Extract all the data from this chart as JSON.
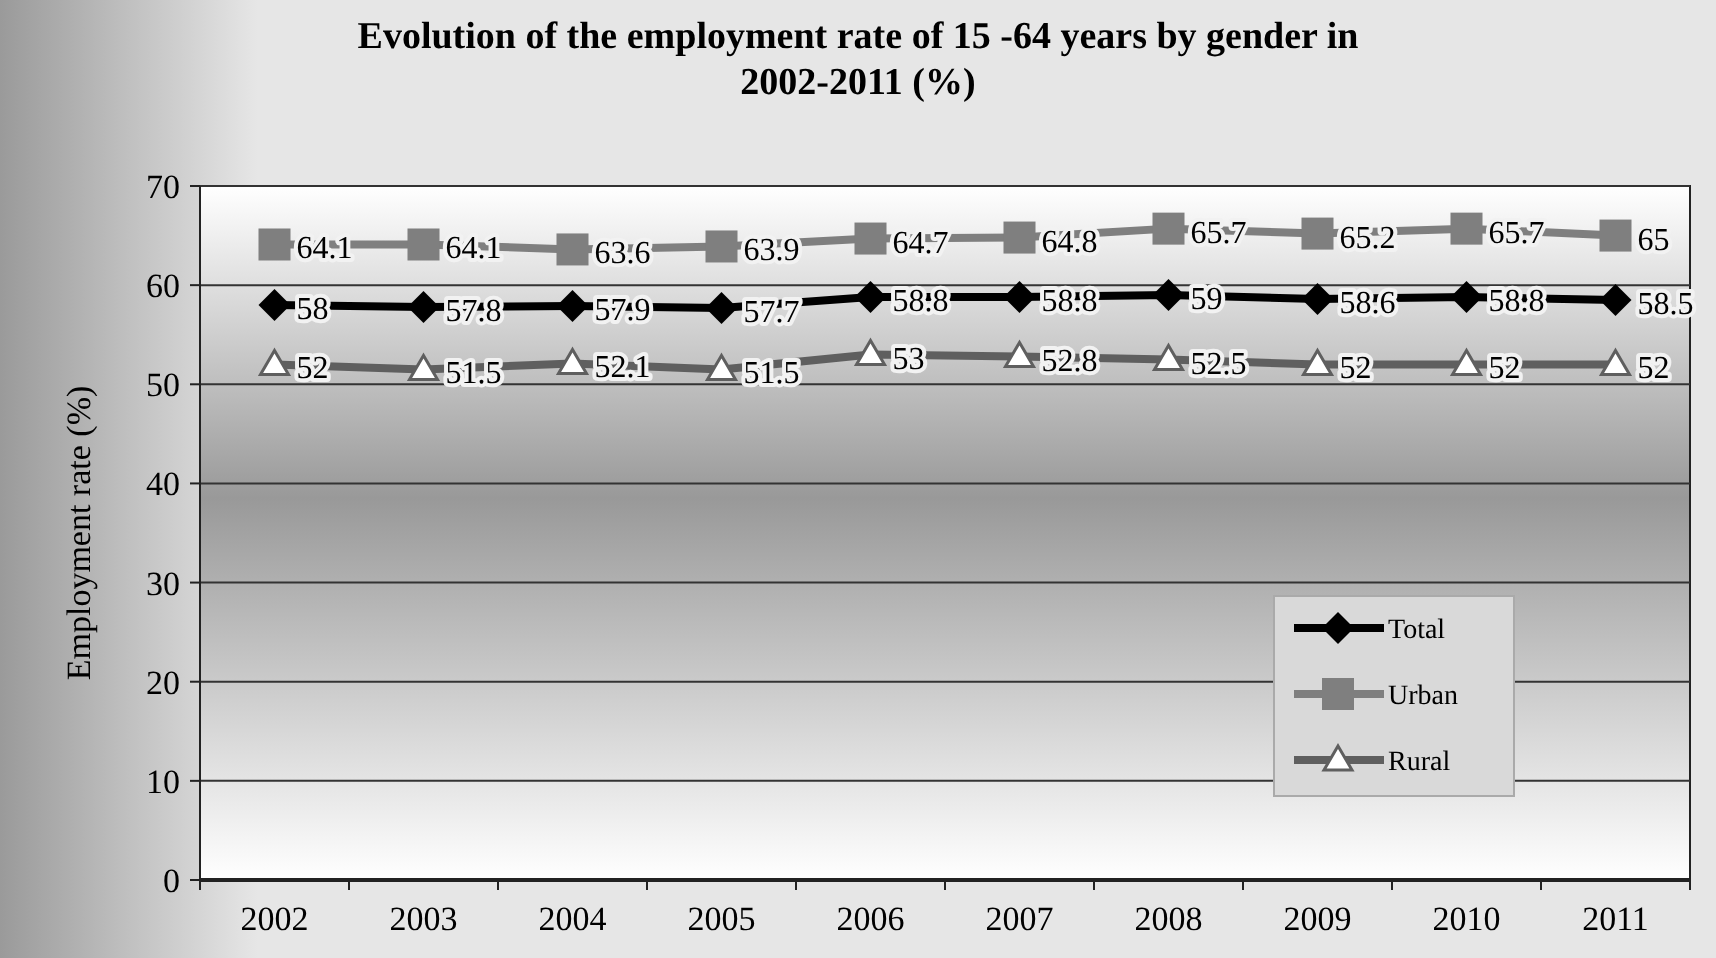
{
  "chart_data": {
    "type": "line",
    "title": "Evolution of the employment rate of 15 -64 years by gender in 2002-2011 (%)",
    "ylabel": "Employment rate (%)",
    "categories": [
      "2002",
      "2003",
      "2004",
      "2005",
      "2006",
      "2007",
      "2008",
      "2009",
      "2010",
      "2011"
    ],
    "series": [
      {
        "name": "Total",
        "color": "#000000",
        "marker": "diamond",
        "values": [
          58,
          57.8,
          57.9,
          57.7,
          58.8,
          58.8,
          59,
          58.6,
          58.8,
          58.5
        ]
      },
      {
        "name": "Urban",
        "color": "#7f7f7f",
        "marker": "square",
        "values": [
          64.1,
          64.1,
          63.6,
          63.9,
          64.7,
          64.8,
          65.7,
          65.2,
          65.7,
          65
        ]
      },
      {
        "name": "Rural",
        "color": "#5f5f5f",
        "marker": "triangle",
        "values": [
          52,
          51.5,
          52.1,
          51.5,
          53,
          52.8,
          52.5,
          52,
          52,
          52
        ]
      }
    ],
    "ylim": [
      0,
      70
    ],
    "yticks": [
      0,
      10,
      20,
      30,
      40,
      50,
      60,
      70
    ],
    "grid": "y",
    "legend": "bottom right",
    "data_labels": true
  }
}
